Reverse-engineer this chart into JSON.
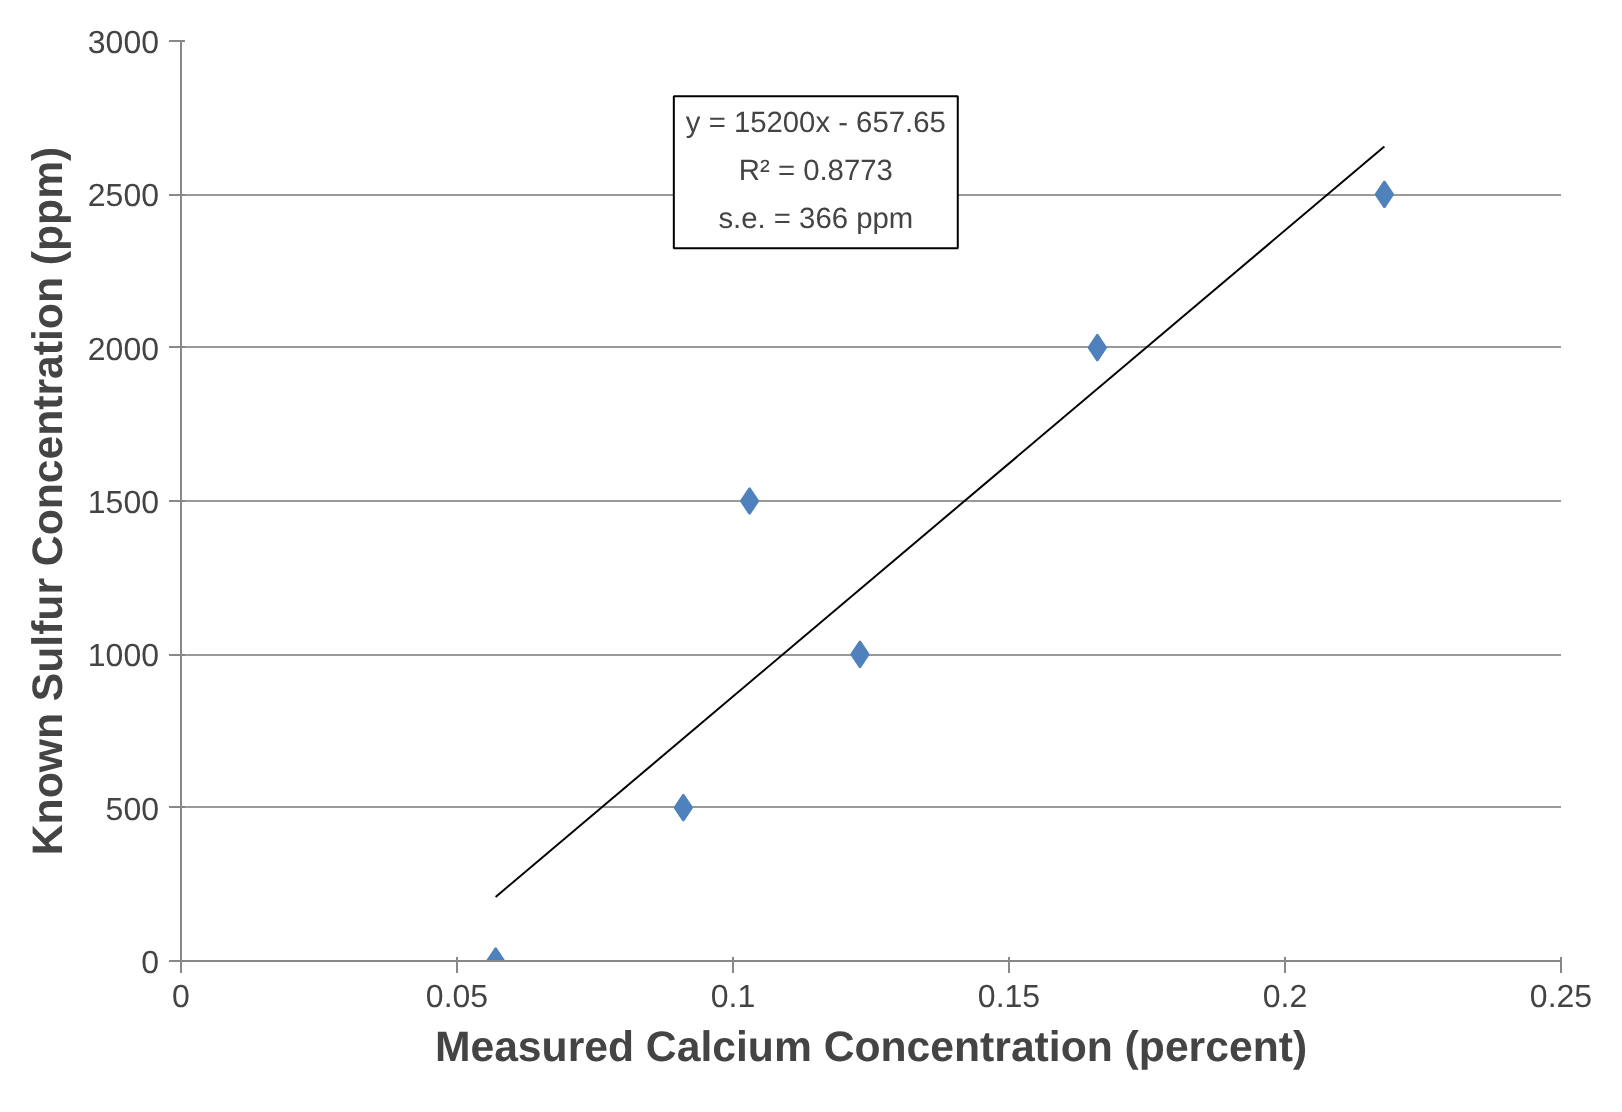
{
  "chart_data": {
    "type": "scatter",
    "xlabel": "Measured Calcium Concentration (percent)",
    "ylabel": "Known Sulfur Concentration (ppm)",
    "x": [
      0.057,
      0.091,
      0.103,
      0.123,
      0.166,
      0.218
    ],
    "series": [
      {
        "color": "#4f81bd",
        "values": [
          0,
          500,
          1500,
          1000,
          2000,
          2500
        ],
        "marker": "diamond"
      },
      {
        "type": "line",
        "color": "#000000",
        "x": [
          0.057,
          0.218
        ],
        "values": [
          209,
          2656
        ],
        "marker": "none"
      }
    ],
    "annotations": [
      "y = 15200x - 657.65",
      "R² = 0.8773",
      "s.e. = 366 ppm"
    ],
    "xlim": [
      0,
      0.25
    ],
    "xticks": [
      0,
      0.05,
      0.1,
      0.15,
      0.2,
      0.25
    ],
    "ylim": [
      0,
      3000
    ],
    "yticks": [
      0,
      500,
      1000,
      1500,
      2000,
      2500,
      3000
    ],
    "grid": "y"
  }
}
